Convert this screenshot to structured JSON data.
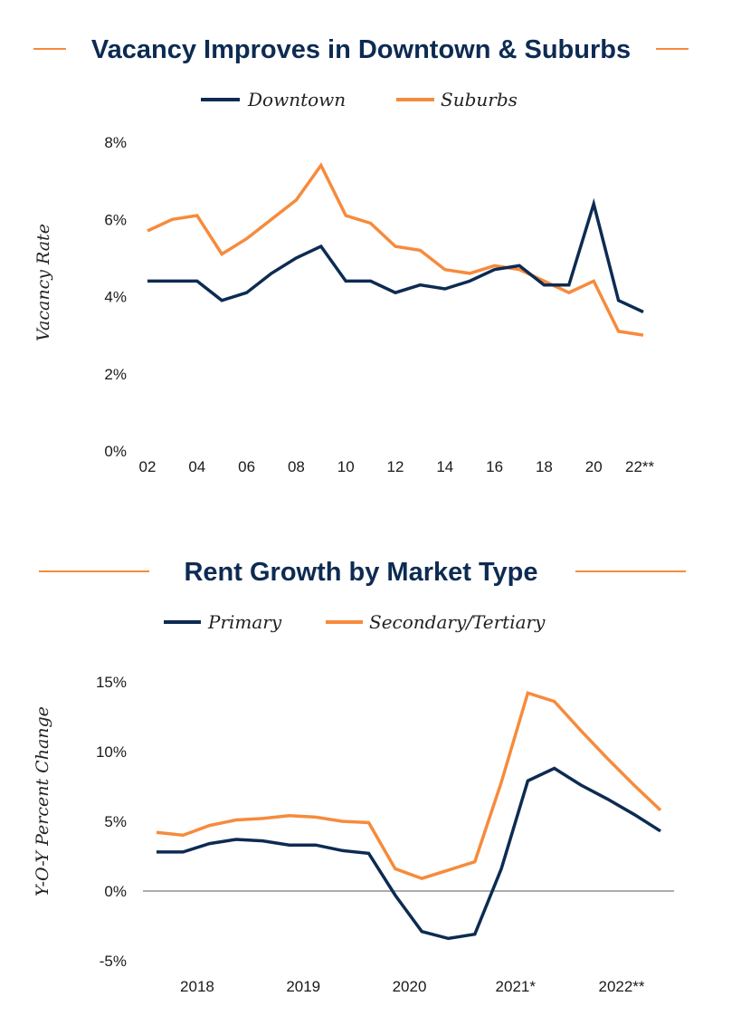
{
  "colors": {
    "navy": "#0d2b52",
    "orange": "#f68b3c",
    "zero_line": "#7a7a7a"
  },
  "chart_data": [
    {
      "type": "line",
      "title": "Vacancy Improves in Downtown & Suburbs",
      "xlabel": "",
      "ylabel": "Vacancy Rate",
      "x": [
        2002,
        2003,
        2004,
        2005,
        2006,
        2007,
        2008,
        2009,
        2010,
        2011,
        2012,
        2013,
        2014,
        2015,
        2016,
        2017,
        2018,
        2019,
        2020,
        2021,
        2022
      ],
      "xticks": [
        {
          "x": 2002,
          "label": "02"
        },
        {
          "x": 2004,
          "label": "04"
        },
        {
          "x": 2006,
          "label": "06"
        },
        {
          "x": 2008,
          "label": "08"
        },
        {
          "x": 2010,
          "label": "10"
        },
        {
          "x": 2012,
          "label": "12"
        },
        {
          "x": 2014,
          "label": "14"
        },
        {
          "x": 2016,
          "label": "16"
        },
        {
          "x": 2018,
          "label": "18"
        },
        {
          "x": 2020,
          "label": "20"
        },
        {
          "x": 2022,
          "label": "22**"
        }
      ],
      "yticks": [
        {
          "v": 0,
          "label": "0%"
        },
        {
          "v": 2,
          "label": "2%"
        },
        {
          "v": 4,
          "label": "4%"
        },
        {
          "v": 6,
          "label": "6%"
        },
        {
          "v": 8,
          "label": "8%"
        }
      ],
      "ylim": [
        0,
        8
      ],
      "grid": false,
      "legend_position": "top-center",
      "series": [
        {
          "name": "Downtown",
          "color": "#0d2b52",
          "values": [
            4.4,
            4.4,
            4.4,
            3.9,
            4.1,
            4.6,
            5.0,
            5.3,
            4.4,
            4.4,
            4.1,
            4.3,
            4.2,
            4.4,
            4.7,
            4.8,
            4.3,
            4.3,
            6.4,
            3.9,
            3.6
          ]
        },
        {
          "name": "Suburbs",
          "color": "#f68b3c",
          "values": [
            5.7,
            6.0,
            6.1,
            5.1,
            5.5,
            6.0,
            6.5,
            7.4,
            6.1,
            5.9,
            5.3,
            5.2,
            4.7,
            4.6,
            4.8,
            4.7,
            4.4,
            4.1,
            4.4,
            3.1,
            3.0
          ]
        }
      ]
    },
    {
      "type": "line",
      "title": "Rent Growth by Market Type",
      "xlabel": "",
      "ylabel": "Y-O-Y Percent Change",
      "x": [
        "2017Q3",
        "2017Q4",
        "2018Q1",
        "2018Q2",
        "2018Q3",
        "2018Q4",
        "2019Q1",
        "2019Q2",
        "2019Q3",
        "2019Q4",
        "2020Q1",
        "2020Q2",
        "2020Q3",
        "2020Q4",
        "2021Q1",
        "2021Q2",
        "2021Q3",
        "2021Q4",
        "2022Q1",
        "2022Q2"
      ],
      "xticks": [
        {
          "index": 1.5,
          "label": "2018"
        },
        {
          "index": 5.5,
          "label": "2019"
        },
        {
          "index": 9.5,
          "label": "2020"
        },
        {
          "index": 13.5,
          "label": "2021*"
        },
        {
          "index": 17.5,
          "label": "2022**"
        }
      ],
      "yticks": [
        {
          "v": -5,
          "label": "-5%"
        },
        {
          "v": 0,
          "label": "0%"
        },
        {
          "v": 5,
          "label": "5%"
        },
        {
          "v": 10,
          "label": "10%"
        },
        {
          "v": 15,
          "label": "15%"
        }
      ],
      "ylim": [
        -5,
        15
      ],
      "grid": false,
      "zero_line": true,
      "legend_position": "top-center",
      "series": [
        {
          "name": "Primary",
          "color": "#0d2b52",
          "values": [
            2.8,
            2.8,
            3.4,
            3.7,
            3.6,
            3.3,
            3.3,
            2.9,
            2.7,
            -0.3,
            -2.9,
            -3.4,
            -3.1,
            1.6,
            7.9,
            8.8,
            7.6,
            6.6,
            5.5,
            4.3
          ]
        },
        {
          "name": "Secondary/Tertiary",
          "color": "#f68b3c",
          "values": [
            4.2,
            4.0,
            4.7,
            5.1,
            5.2,
            5.4,
            5.3,
            5.0,
            4.9,
            1.6,
            0.9,
            1.5,
            2.1,
            7.8,
            14.2,
            13.6,
            11.5,
            9.5,
            7.6,
            5.8
          ]
        }
      ]
    }
  ]
}
